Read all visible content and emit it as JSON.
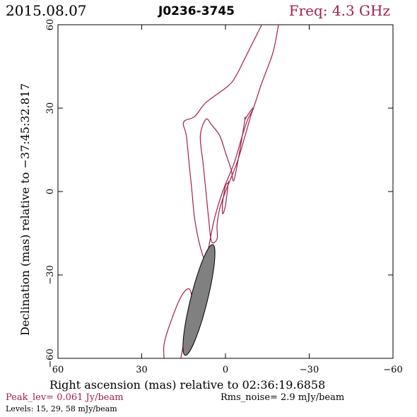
{
  "header": {
    "date": "2015.08.07",
    "source": "J0236-3745",
    "freq": "Freq: 4.3 GHz"
  },
  "footer": {
    "peak": "Peak_lev=  0.061 Jy/beam",
    "rms": "Rms_noise=  2.9 mJy/beam",
    "levels": "Levels:  15,  29,  58 mJy/beam"
  },
  "colors": {
    "contour": "#a0204a",
    "header_accent": "#a0204a",
    "beam_fill": "#808080"
  },
  "chart_data": {
    "type": "contour",
    "xlabel": "Right ascension (mas) relative to 02:36:19.6858",
    "ylabel": "Declination (mas) relative to −37:45:32.817",
    "xlim": [
      60,
      -60
    ],
    "ylim": [
      -60,
      60
    ],
    "xticks": [
      60,
      30,
      0,
      -30,
      -60
    ],
    "yticks": [
      -60,
      -30,
      0,
      30,
      60
    ],
    "xtick_labels": [
      "60",
      "30",
      "0",
      "−30",
      "−60"
    ],
    "ytick_labels": [
      "−60",
      "−30",
      "0",
      "30",
      "60"
    ],
    "contours": [
      {
        "name": "outer",
        "closed": false,
        "points": [
          [
            -19,
            60
          ],
          [
            -17,
            50
          ],
          [
            -13,
            39
          ],
          [
            -10,
            30
          ],
          [
            -8,
            26
          ],
          [
            -6,
            20
          ],
          [
            -3,
            10
          ],
          [
            1,
            0
          ],
          [
            4,
            -10
          ],
          [
            6,
            -20
          ],
          [
            7,
            -25
          ],
          [
            9,
            -20
          ],
          [
            11,
            -10
          ],
          [
            12,
            0
          ],
          [
            13,
            10
          ],
          [
            14,
            20
          ],
          [
            15,
            25
          ],
          [
            11,
            27
          ],
          [
            7,
            32
          ],
          [
            -1,
            38
          ],
          [
            -4,
            42
          ],
          [
            -7,
            48
          ],
          [
            -12,
            58
          ],
          [
            -13,
            60
          ]
        ]
      },
      {
        "name": "inner",
        "closed": true,
        "points": [
          [
            -7,
            26
          ],
          [
            -9,
            29
          ],
          [
            -10,
            30
          ],
          [
            -9,
            27
          ],
          [
            -7,
            20
          ],
          [
            -4,
            10
          ],
          [
            0,
            0
          ],
          [
            2,
            -6
          ],
          [
            3,
            -12
          ],
          [
            3,
            -17
          ],
          [
            5,
            -18
          ],
          [
            6,
            -10
          ],
          [
            7,
            0
          ],
          [
            8,
            10
          ],
          [
            9,
            20
          ],
          [
            7,
            26
          ],
          [
            5,
            24
          ],
          [
            2,
            20
          ],
          [
            0,
            14
          ],
          [
            -2,
            8
          ],
          [
            -3,
            4
          ],
          [
            -5,
            14
          ],
          [
            -7,
            26
          ]
        ]
      },
      {
        "name": "core",
        "closed": true,
        "points": [
          [
            -1,
            3
          ],
          [
            0,
            -5
          ],
          [
            1,
            -8
          ],
          [
            1,
            -4
          ],
          [
            0,
            2
          ],
          [
            -1,
            3
          ]
        ]
      },
      {
        "name": "southern",
        "closed": false,
        "points": [
          [
            22,
            -60
          ],
          [
            22,
            -55
          ],
          [
            20,
            -48
          ],
          [
            16,
            -38
          ],
          [
            13,
            -35
          ],
          [
            12,
            -40
          ],
          [
            13,
            -48
          ],
          [
            15,
            -55
          ],
          [
            16,
            -60
          ]
        ]
      }
    ],
    "beam": {
      "center": [
        9.5,
        -39
      ],
      "major": 41,
      "minor": 6,
      "pa_deg": 14
    }
  }
}
